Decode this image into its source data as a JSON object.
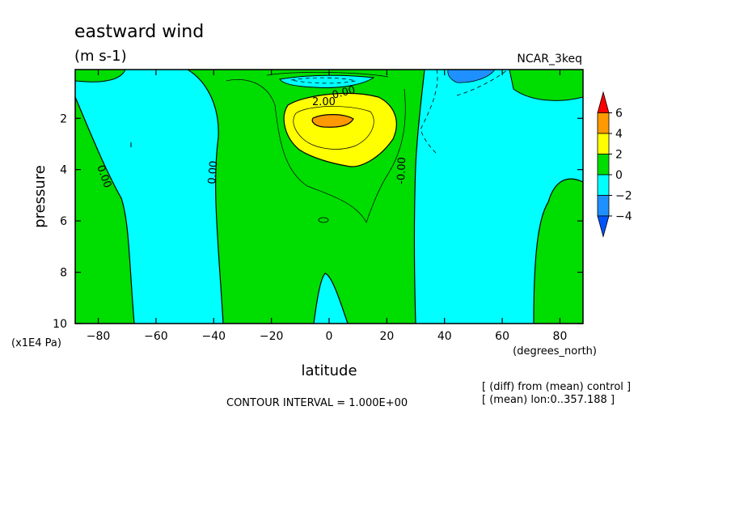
{
  "chart_data": {
    "type": "contour",
    "title": "eastward wind",
    "units": "(m s-1)",
    "model": "NCAR_3keq",
    "xlabel": "latitude",
    "x_unit_label": "(degrees_north)",
    "ylabel": "pressure",
    "y_unit_label": "(x1E4 Pa)",
    "xlim": [
      -88,
      88
    ],
    "ylim": [
      10,
      0.1
    ],
    "x_ticks": [
      -80,
      -60,
      -40,
      -20,
      0,
      20,
      40,
      60,
      80
    ],
    "x_tick_labels": [
      "−80",
      "−60",
      "−40",
      "−20",
      "0",
      "20",
      "40",
      "60",
      "80"
    ],
    "y_ticks": [
      2,
      4,
      6,
      8,
      10
    ],
    "y_tick_labels": [
      "2",
      "4",
      "6",
      "8",
      "10"
    ],
    "contour_interval_text": "CONTOUR INTERVAL = 1.000E+00",
    "contour_labels": [
      "0.00",
      "0.00",
      "0.00",
      "2.00",
      "-0.00"
    ],
    "notes": [
      "[ (diff) from (mean) control ]",
      "[ (mean) lon:0..357.188 ]"
    ],
    "colorbar": {
      "levels": [
        "6",
        "4",
        "2",
        "0",
        "−2",
        "−4"
      ],
      "colors": [
        "#ff0000",
        "#ff9900",
        "#ffff00",
        "#00dd00",
        "#00ffff",
        "#1e90ff",
        "#0055ff"
      ]
    }
  }
}
